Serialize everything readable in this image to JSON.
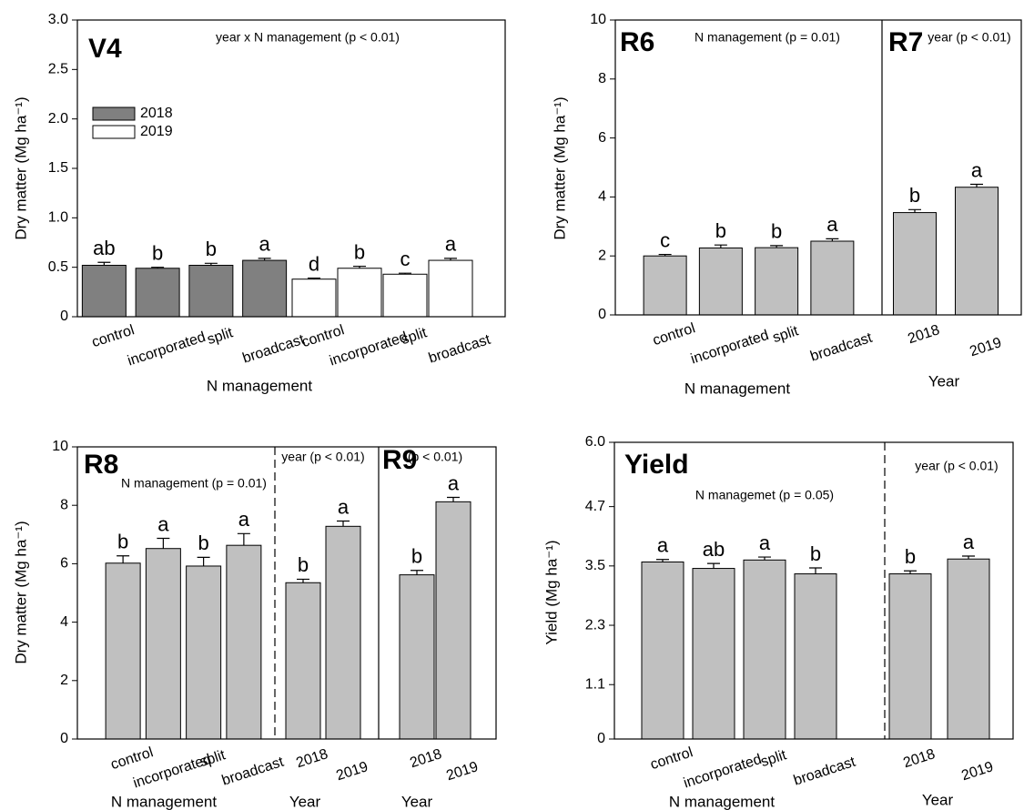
{
  "chart_data": [
    {
      "type": "bar",
      "title": "V4",
      "ylabel": "Dry matter (Mg ha⁻¹)",
      "xlabel": "N management",
      "annotation": "year x N management (p < 0.01)",
      "legend": "upper left",
      "ylim": [
        0,
        3
      ],
      "yticks": [
        0,
        0.5,
        {
          "value": 1,
          "label": "1.0"
        },
        1.5,
        {
          "value": 2,
          "label": "2.0"
        },
        2.5,
        {
          "value": 3,
          "label": "3.0"
        }
      ],
      "groups": [
        {
          "name": "2018",
          "color": "#808080",
          "categories": [
            "control",
            "incorporated",
            "split",
            "broadcast"
          ],
          "values": [
            0.52,
            0.49,
            0.52,
            0.57
          ],
          "errors": [
            0.03,
            0.01,
            0.02,
            0.02
          ],
          "letters": [
            "ab",
            "b",
            "b",
            "a"
          ]
        },
        {
          "name": "2019",
          "color": "#ffffff",
          "categories": [
            "control",
            "incorporated",
            "split",
            "broadcast"
          ],
          "values": [
            0.38,
            0.49,
            0.43,
            0.57
          ],
          "errors": [
            0.01,
            0.02,
            0.01,
            0.02
          ],
          "letters": [
            "d",
            "b",
            "c",
            "a"
          ]
        }
      ]
    },
    {
      "type": "bar",
      "title": "R6",
      "ylabel": "Dry matter (Mg ha⁻¹)",
      "ylim": [
        0,
        10
      ],
      "yticks": [
        0,
        2,
        4,
        6,
        8,
        10
      ],
      "separators": [
        "solid"
      ],
      "groups": [
        {
          "xlabel": "N management",
          "annotation": "N management (p = 0.01)",
          "color": "#c0c0c0",
          "categories": [
            "control",
            "incorporated",
            "split",
            "broadcast"
          ],
          "values": [
            2.0,
            2.27,
            2.28,
            2.5
          ],
          "errors": [
            0.05,
            0.1,
            0.07,
            0.08
          ],
          "letters": [
            "c",
            "b",
            "b",
            "a"
          ]
        },
        {
          "title": "R7",
          "xlabel": "Year",
          "annotation": "year (p < 0.01)",
          "color": "#c0c0c0",
          "categories": [
            "2018",
            "2019"
          ],
          "values": [
            3.47,
            4.33
          ],
          "errors": [
            0.1,
            0.1
          ],
          "letters": [
            "b",
            "a"
          ]
        }
      ]
    },
    {
      "type": "bar",
      "title": "R8",
      "ylabel": "Dry matter (Mg ha⁻¹)",
      "ylim": [
        0,
        10
      ],
      "yticks": [
        0,
        2,
        4,
        6,
        8,
        10
      ],
      "separators": [
        "dashed",
        "solid"
      ],
      "groups": [
        {
          "xlabel": "N management",
          "annotation": "N management (p = 0.01)",
          "color": "#c0c0c0",
          "categories": [
            "control",
            "incorporated",
            "split",
            "broadcast"
          ],
          "values": [
            6.02,
            6.52,
            5.92,
            6.63
          ],
          "errors": [
            0.25,
            0.35,
            0.3,
            0.4
          ],
          "letters": [
            "b",
            "a",
            "b",
            "a"
          ]
        },
        {
          "xlabel": "Year",
          "annotation": "year (p < 0.01)",
          "color": "#c0c0c0",
          "categories": [
            "2018",
            "2019"
          ],
          "values": [
            5.35,
            7.28
          ],
          "errors": [
            0.12,
            0.18
          ],
          "letters": [
            "b",
            "a"
          ]
        },
        {
          "title": "R9",
          "xlabel": "Year",
          "annotation": "(p < 0.01)",
          "color": "#c0c0c0",
          "categories": [
            "2018",
            "2019"
          ],
          "values": [
            5.62,
            8.12
          ],
          "errors": [
            0.15,
            0.15
          ],
          "letters": [
            "b",
            "a"
          ]
        }
      ]
    },
    {
      "type": "bar",
      "title": "Yield",
      "ylabel": "Yield (Mg ha⁻¹)",
      "ylim": [
        0,
        6
      ],
      "yticks": [
        0,
        1.1,
        2.3,
        3.5,
        4.7,
        {
          "value": 6,
          "label": "6.0"
        }
      ],
      "separators": [
        "dashed"
      ],
      "groups": [
        {
          "xlabel": "N management",
          "annotation": "N managemet (p = 0.05)",
          "color": "#c0c0c0",
          "categories": [
            "control",
            "incorporated",
            "split",
            "broadcast"
          ],
          "values": [
            3.58,
            3.45,
            3.62,
            3.34
          ],
          "errors": [
            0.05,
            0.1,
            0.06,
            0.12
          ],
          "letters": [
            "a",
            "ab",
            "a",
            "b"
          ]
        },
        {
          "xlabel": "Year",
          "annotation": "year (p < 0.01)",
          "color": "#c0c0c0",
          "categories": [
            "2018",
            "2019"
          ],
          "values": [
            3.34,
            3.64
          ],
          "errors": [
            0.06,
            0.06
          ],
          "letters": [
            "b",
            "a"
          ]
        }
      ]
    }
  ]
}
